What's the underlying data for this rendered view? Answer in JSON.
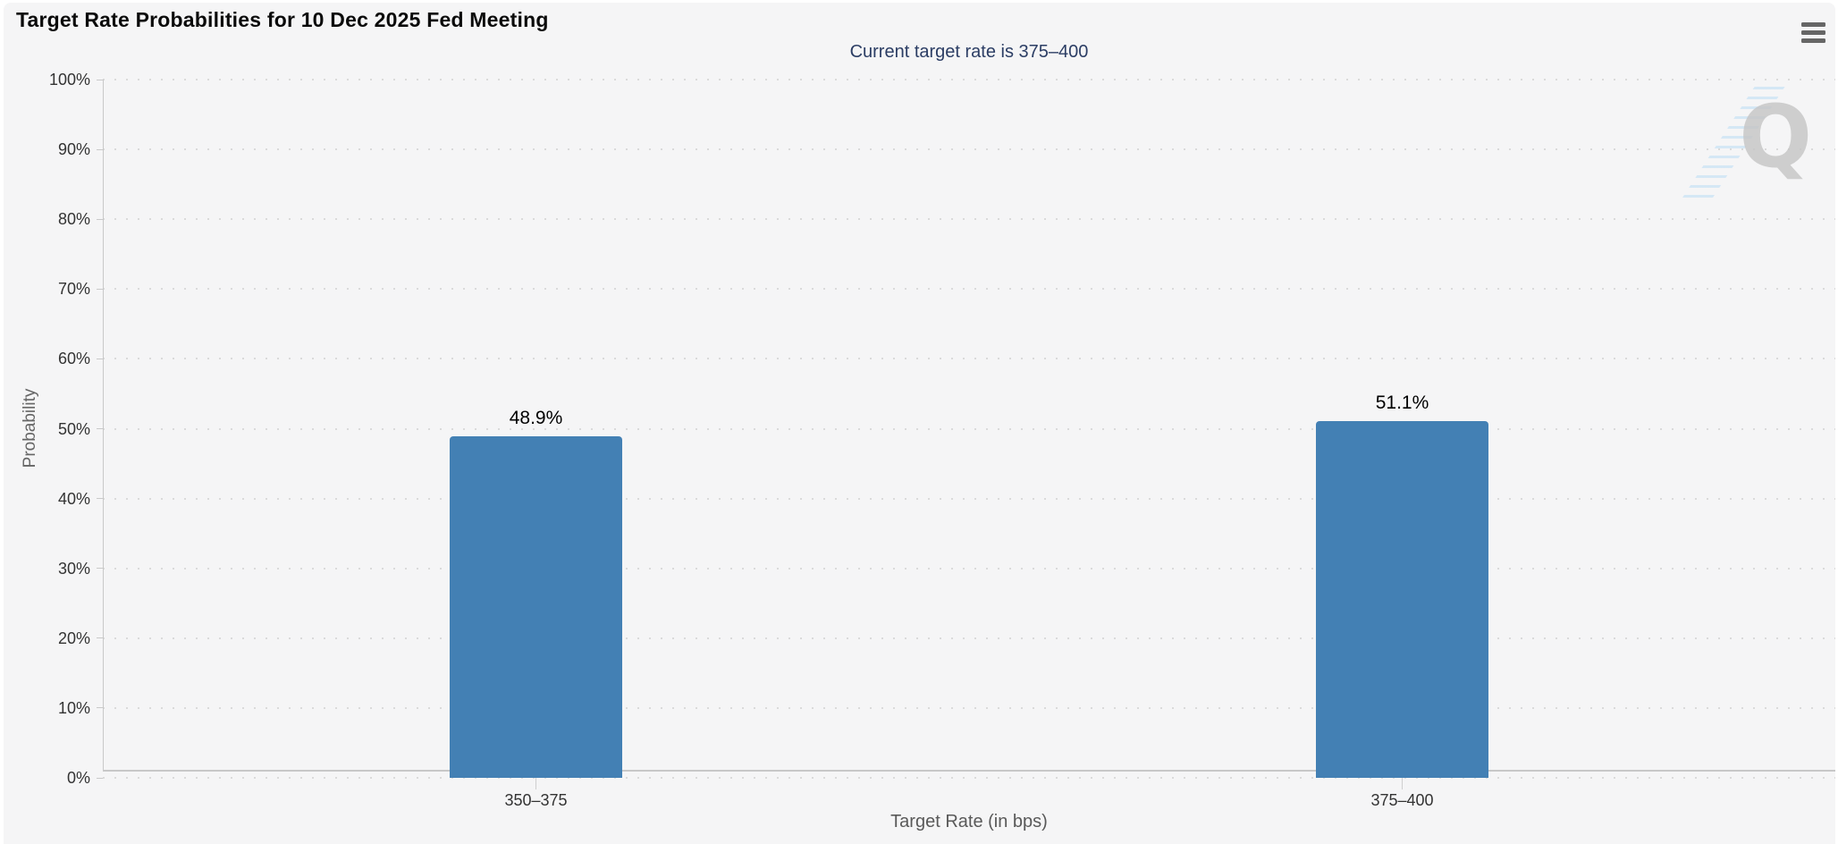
{
  "chart_data": {
    "type": "bar",
    "title": "Target Rate Probabilities for 10 Dec 2025 Fed Meeting",
    "subtitle": "Current target rate is 375–400",
    "categories": [
      "350–375",
      "375–400"
    ],
    "values": [
      48.9,
      51.1
    ],
    "value_labels": [
      "48.9%",
      "51.1%"
    ],
    "xlabel": "Target Rate (in bps)",
    "ylabel": "Probability",
    "ylim": [
      0,
      100
    ],
    "yticks": [
      0,
      10,
      20,
      30,
      40,
      50,
      60,
      70,
      80,
      90,
      100
    ],
    "ytick_suffix": "%",
    "grid": "horizontal-dotted",
    "legend_position": "none",
    "bar_color": "#4380b4"
  },
  "watermark": {
    "letter": "Q"
  },
  "colors": {
    "background": "#f5f5f6",
    "bar": "#4380b4",
    "title": "#0b0b0b",
    "subtitle": "#2b3d64",
    "tick_label": "#333333",
    "axis_title_x": "#595959",
    "axis_title_y": "#666666",
    "grid_dot": "#dadada",
    "axis_line": "#c9c9c9",
    "menu_icon": "#666666",
    "watermark_gray": "#c5c5c5",
    "watermark_blue": "#cfe5f5"
  }
}
